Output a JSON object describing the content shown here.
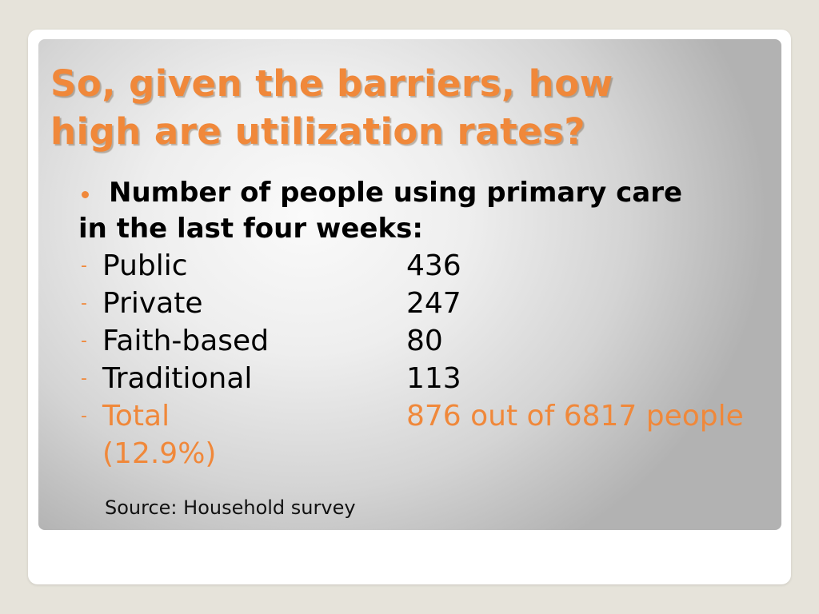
{
  "slide": {
    "title_line1": "So, given the barriers, how",
    "title_line2": "high are utilization rates?",
    "lead_line1": "Number of people using primary care",
    "lead_line2": "in the last four weeks:",
    "rows": [
      {
        "label": "Public",
        "value": "436"
      },
      {
        "label": "Private",
        "value": "247"
      },
      {
        "label": "Faith-based",
        "value": "80"
      },
      {
        "label": "Traditional",
        "value": "113"
      }
    ],
    "total": {
      "label": "Total",
      "value": "876 out of 6817 people",
      "percent": "(12.9%)"
    },
    "dash": "-",
    "source": "Source: Household survey"
  },
  "colors": {
    "accent": "#f0883a",
    "background": "#e6e3da"
  }
}
